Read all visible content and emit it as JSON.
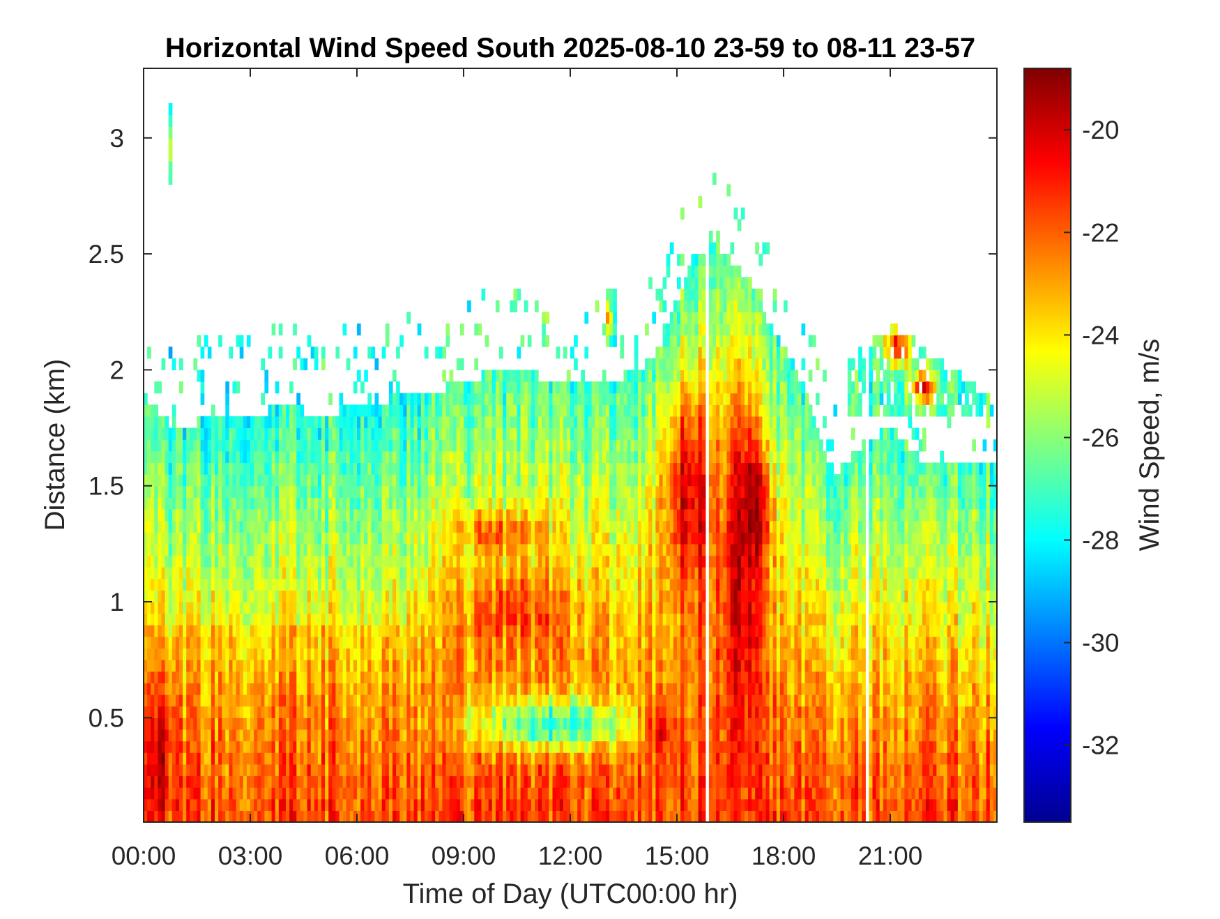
{
  "chart_data": {
    "type": "heatmap",
    "title": "Horizontal Wind Speed South 2025-08-10 23-59 to 08-11 23-57",
    "xlabel": "Time of Day (UTC00:00 hr)",
    "ylabel": "Distance (km)",
    "colorbar_label": "Wind Speed, m/s",
    "x_unit": "hours",
    "xlim": [
      0,
      24
    ],
    "ylim": [
      0.05,
      3.3
    ],
    "clim": [
      -33.5,
      -18.8
    ],
    "x_ticks": [
      {
        "value": 0,
        "label": "00:00"
      },
      {
        "value": 3,
        "label": "03:00"
      },
      {
        "value": 6,
        "label": "06:00"
      },
      {
        "value": 9,
        "label": "09:00"
      },
      {
        "value": 12,
        "label": "12:00"
      },
      {
        "value": 15,
        "label": "15:00"
      },
      {
        "value": 18,
        "label": "18:00"
      },
      {
        "value": 21,
        "label": "21:00"
      }
    ],
    "y_ticks": [
      {
        "value": 0.5,
        "label": "0.5"
      },
      {
        "value": 1,
        "label": "1"
      },
      {
        "value": 1.5,
        "label": "1.5"
      },
      {
        "value": 2,
        "label": "2"
      },
      {
        "value": 2.5,
        "label": "2.5"
      },
      {
        "value": 3,
        "label": "3"
      }
    ],
    "colorbar_ticks": [
      {
        "value": -20,
        "label": "-20"
      },
      {
        "value": -22,
        "label": "-22"
      },
      {
        "value": -24,
        "label": "-24"
      },
      {
        "value": -26,
        "label": "-26"
      },
      {
        "value": -28,
        "label": "-28"
      },
      {
        "value": -30,
        "label": "-30"
      },
      {
        "value": -32,
        "label": "-32"
      }
    ],
    "colormap": "jet",
    "grid": false,
    "time_bin_hours": 0.1,
    "range_bin_km": 0.05,
    "data_top_km": [
      [
        0,
        1.9
      ],
      [
        0.5,
        1.8
      ],
      [
        1,
        1.75
      ],
      [
        2,
        1.8
      ],
      [
        3,
        1.8
      ],
      [
        4,
        1.85
      ],
      [
        5,
        1.8
      ],
      [
        6,
        1.85
      ],
      [
        8,
        1.9
      ],
      [
        9,
        1.95
      ],
      [
        10,
        2.0
      ],
      [
        12,
        1.95
      ],
      [
        13,
        1.95
      ],
      [
        14,
        2.0
      ],
      [
        14.5,
        2.1
      ],
      [
        15,
        2.3
      ],
      [
        15.5,
        2.5
      ],
      [
        16,
        2.55
      ],
      [
        17,
        2.4
      ],
      [
        17.6,
        2.2
      ],
      [
        18,
        2.1
      ],
      [
        18.5,
        1.95
      ],
      [
        19,
        1.7
      ],
      [
        19.5,
        1.55
      ],
      [
        20,
        1.65
      ],
      [
        21,
        1.75
      ],
      [
        22,
        1.6
      ],
      [
        23,
        1.6
      ],
      [
        24,
        1.6
      ]
    ],
    "wind_speed_features": [
      {
        "t": [
          0,
          1
        ],
        "z": [
          0.05,
          0.62
        ],
        "value": -20.5
      },
      {
        "t": [
          8.5,
          12.5
        ],
        "z": [
          0.75,
          1.15
        ],
        "value": -21.8
      },
      {
        "t": [
          8.5,
          11.5
        ],
        "z": [
          1.2,
          1.4
        ],
        "value": -22.2
      },
      {
        "t": [
          9,
          14
        ],
        "z": [
          0.35,
          0.6
        ],
        "value": -27.6
      },
      {
        "t": [
          14,
          15.2
        ],
        "z": [
          0.3,
          0.6
        ],
        "value": -20.6
      },
      {
        "t": [
          14.5,
          16.2
        ],
        "z": [
          0.9,
          2.0
        ],
        "value": -20.2
      },
      {
        "t": [
          16.2,
          17.5
        ],
        "z": [
          0.05,
          2.15
        ],
        "value": -19.8
      },
      {
        "t": [
          16.6,
          17.6
        ],
        "z": [
          1.1,
          1.7
        ],
        "value": -19.0
      },
      {
        "t": [
          20.8,
          21.6
        ],
        "z": [
          2.0,
          2.2
        ],
        "value": -20.2
      },
      {
        "t": [
          21.5,
          22.3
        ],
        "z": [
          1.85,
          2.0
        ],
        "value": -20.6
      },
      {
        "t": [
          12.95,
          13.2
        ],
        "z": [
          2.15,
          2.3
        ],
        "value": -22.5
      },
      {
        "t": [
          0.7,
          0.8
        ],
        "z": [
          2.8,
          3.15
        ],
        "value": -24.5
      }
    ]
  }
}
